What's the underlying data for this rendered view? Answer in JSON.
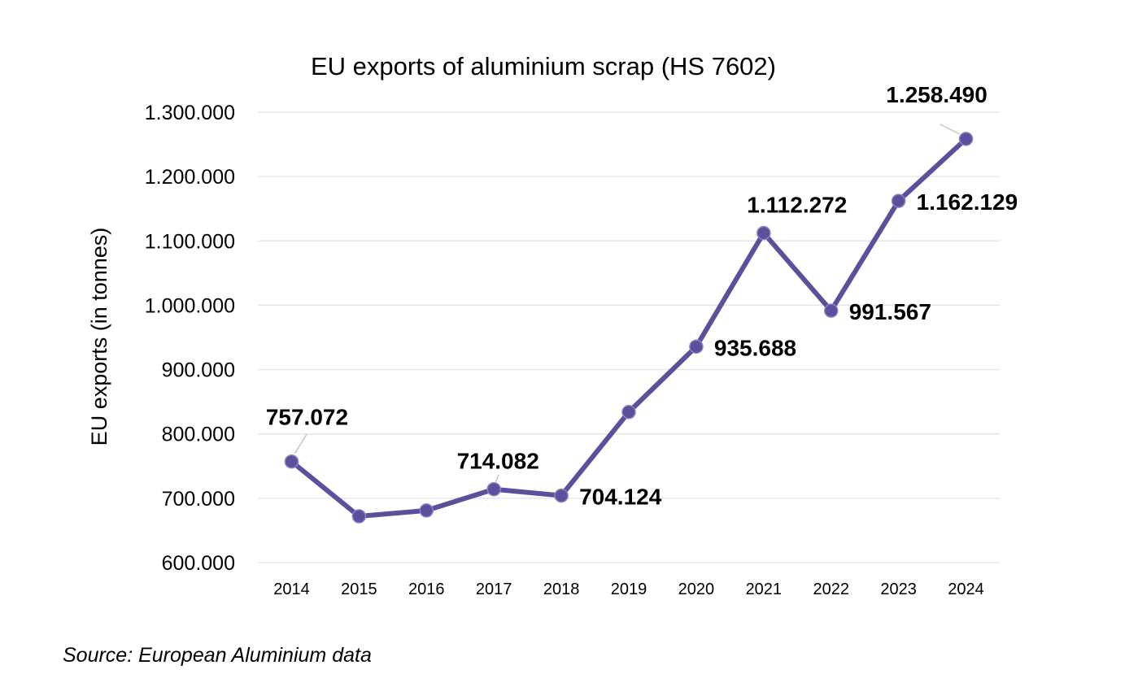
{
  "chart_data": {
    "type": "line",
    "title": "EU exports of aluminium scrap (HS 7602)",
    "xlabel": "",
    "ylabel": "EU exports (in tonnes)",
    "categories": [
      "2014",
      "2015",
      "2016",
      "2017",
      "2018",
      "2019",
      "2020",
      "2021",
      "2022",
      "2023",
      "2024"
    ],
    "series": [
      {
        "values": [
          757072,
          672000,
          681000,
          714082,
          704124,
          834000,
          935688,
          1112272,
          991567,
          1162129,
          1258490
        ]
      }
    ],
    "data_labels": [
      {
        "index": 0,
        "text": "757.072",
        "position": "above"
      },
      {
        "index": 3,
        "text": "714.082",
        "position": "above"
      },
      {
        "index": 4,
        "text": "704.124",
        "position": "right"
      },
      {
        "index": 6,
        "text": "935.688",
        "position": "right"
      },
      {
        "index": 7,
        "text": "1.112.272",
        "position": "above"
      },
      {
        "index": 8,
        "text": "991.567",
        "position": "right"
      },
      {
        "index": 9,
        "text": "1.162.129",
        "position": "right"
      },
      {
        "index": 10,
        "text": "1.258.490",
        "position": "above"
      }
    ],
    "ylim": [
      600000,
      1300000
    ],
    "yticks": [
      600000,
      700000,
      800000,
      900000,
      1000000,
      1100000,
      1200000,
      1300000
    ],
    "ytick_labels": [
      "600.000",
      "700.000",
      "800.000",
      "900.000",
      "1.000.000",
      "1.100.000",
      "1.200.000",
      "1.300.000"
    ],
    "grid": true,
    "legend": "none",
    "colors": {
      "line": "#5b509c",
      "marker": "#5b509c",
      "grid": "#e3e3e3",
      "text": "#000000",
      "leader": "#c8c8c8"
    }
  },
  "source": "Source: European Aluminium data"
}
